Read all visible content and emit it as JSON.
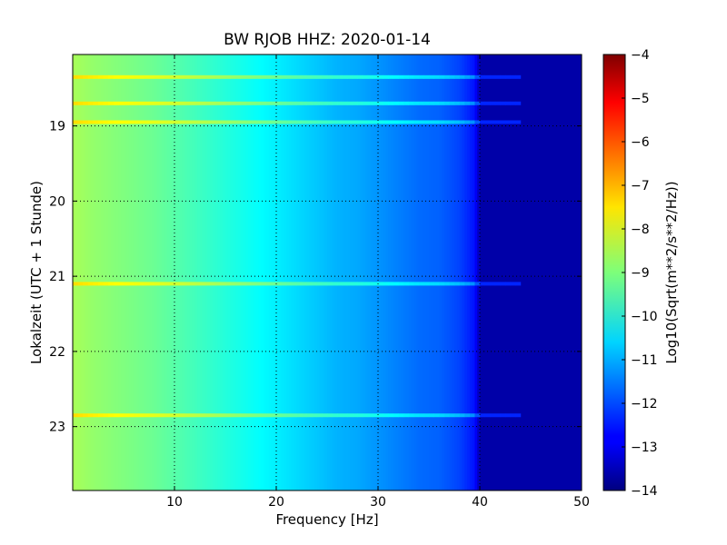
{
  "chart_data": {
    "type": "heatmap",
    "title": "BW RJOB HHZ: 2020-01-14",
    "xlabel": "Frequency [Hz]",
    "ylabel": "Lokalzeit (UTC + 1 Stunde)",
    "xlim": [
      0,
      50
    ],
    "ylim": [
      18.05,
      23.85
    ],
    "y_axis_direction": "inverted (time increases downward)",
    "xticks": [
      10,
      20,
      30,
      40,
      50
    ],
    "yticks": [
      19,
      20,
      21,
      22,
      23
    ],
    "grid": true,
    "colormap": "jet",
    "colorbar": {
      "label": "Log10(Sqrt(m**2/s**2/Hz))",
      "range": [
        -14,
        -4
      ],
      "ticks": [
        -4,
        -5,
        -6,
        -7,
        -8,
        -9,
        -10,
        -11,
        -12,
        -13,
        -14
      ]
    },
    "spectral_profile": {
      "frequency_hz": [
        0,
        2,
        5,
        8,
        10,
        12,
        14,
        16,
        18,
        20,
        22,
        24,
        26,
        28,
        30,
        32,
        34,
        36,
        38,
        39.5,
        40,
        50
      ],
      "log_psd": [
        -8.6,
        -8.8,
        -9.0,
        -9.2,
        -9.4,
        -9.6,
        -9.8,
        -10.0,
        -10.2,
        -10.4,
        -10.6,
        -10.8,
        -11.0,
        -11.1,
        -11.3,
        -11.5,
        -11.7,
        -11.8,
        -12.1,
        -12.6,
        -13.6,
        -13.6
      ]
    },
    "bright_time_bands_hour": [
      18.35,
      18.7,
      18.95,
      21.1,
      22.85
    ]
  }
}
